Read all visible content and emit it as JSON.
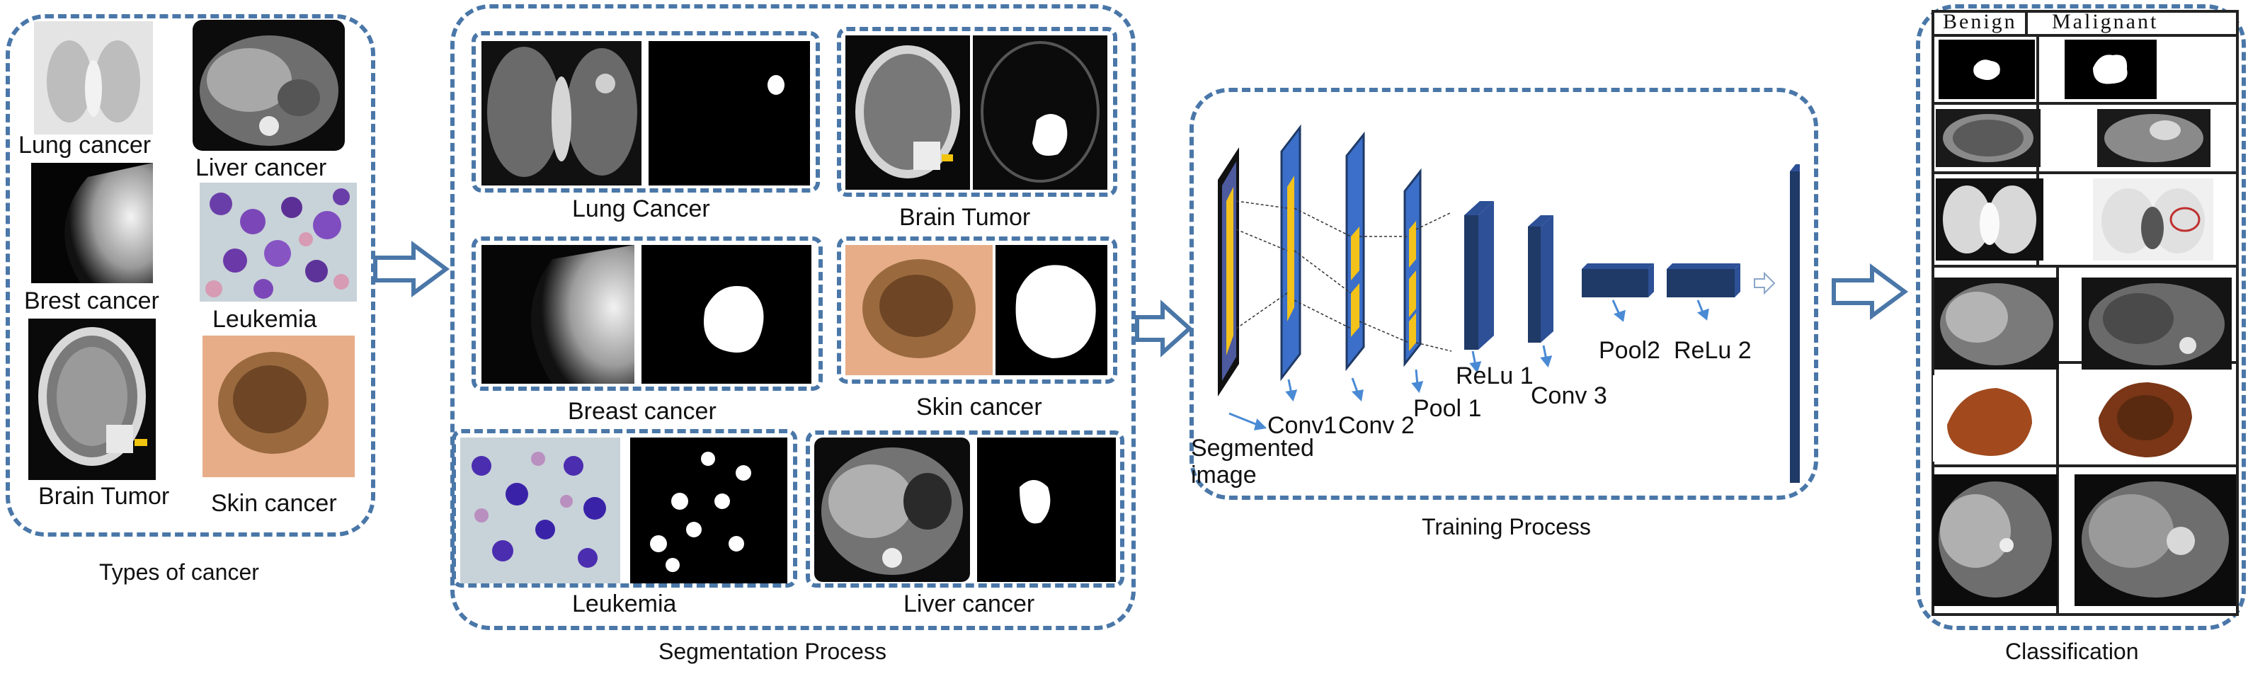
{
  "types_panel": {
    "caption": "Types of cancer",
    "items": [
      {
        "label": "Lung cancer"
      },
      {
        "label": "Liver cancer"
      },
      {
        "label": "Brest cancer"
      },
      {
        "label": "Leukemia"
      },
      {
        "label": "Brain Tumor"
      },
      {
        "label": "Skin cancer"
      }
    ]
  },
  "segmentation_panel": {
    "caption": "Segmentation Process",
    "items": [
      {
        "label": "Lung Cancer"
      },
      {
        "label": "Brain Tumor"
      },
      {
        "label": "Breast cancer"
      },
      {
        "label": "Skin cancer"
      },
      {
        "label": "Leukemia"
      },
      {
        "label": "Liver cancer"
      }
    ]
  },
  "training_panel": {
    "caption": "Training Process",
    "layers": {
      "segmented": "Segmented\nimage",
      "conv1": "Conv1",
      "conv2": "Conv 2",
      "pool1": "Pool 1",
      "relu1": "ReLu 1",
      "conv3": "Conv 3",
      "pool2": "Pool2",
      "relu2": "ReLu 2"
    }
  },
  "classification_panel": {
    "caption": "Classification",
    "headers": {
      "benign": "Benign",
      "malignant": "Malignant"
    }
  },
  "colors": {
    "panel_border": "#4a77a8",
    "layer_blue": "#3b6fc9",
    "layer_dark": "#1f3a66",
    "feature_yellow": "#f3c21b"
  }
}
